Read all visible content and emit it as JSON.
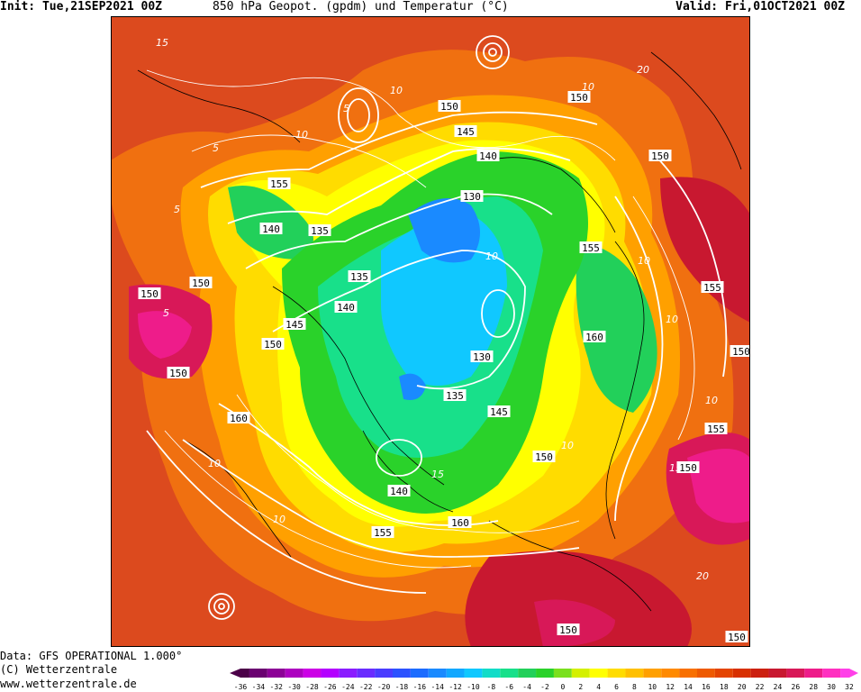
{
  "header": {
    "init": "Init: Tue,21SEP2021 00Z",
    "title": "850 hPa Geopot. (gpdm) und Temperatur (°C)",
    "valid": "Valid: Fri,01OCT2021 00Z"
  },
  "footer": {
    "data_source": "Data: GFS OPERATIONAL 1.000°",
    "copyright": "(C) Wetterzentrale",
    "url": "www.wetterzentrale.de"
  },
  "legend": {
    "ticks": [
      "-36",
      "-34",
      "-32",
      "-30",
      "-28",
      "-26",
      "-24",
      "-22",
      "-20",
      "-18",
      "-16",
      "-14",
      "-12",
      "-10",
      "-8",
      "-6",
      "-4",
      "-2",
      "0",
      "2",
      "4",
      "6",
      "8",
      "10",
      "12",
      "14",
      "16",
      "18",
      "20",
      "22",
      "24",
      "26",
      "28",
      "30",
      "32"
    ],
    "colors": [
      "#4b0048",
      "#6a0070",
      "#8c0096",
      "#ad00c0",
      "#cc00e6",
      "#b400ff",
      "#8a1cff",
      "#6a2cff",
      "#4a3cff",
      "#2c52ff",
      "#1c6cff",
      "#1a8aff",
      "#12a8ff",
      "#10c8ff",
      "#12dcc8",
      "#18e08a",
      "#22d05a",
      "#2ad22a",
      "#7ae01e",
      "#d4f000",
      "#ffff00",
      "#ffdc00",
      "#ffc000",
      "#ffa000",
      "#ff8a00",
      "#f87000",
      "#ee5a00",
      "#e44400",
      "#d83000",
      "#cc2010",
      "#c81830",
      "#d81858",
      "#ee1c8a",
      "#ff30c0",
      "#ff40e8"
    ]
  },
  "contour_labels": {
    "geopotential": [
      "150",
      "145",
      "140",
      "130",
      "155",
      "140",
      "135",
      "150",
      "150",
      "135",
      "140",
      "145",
      "150",
      "150",
      "160",
      "130",
      "135",
      "145",
      "150",
      "140",
      "160",
      "155",
      "155",
      "150",
      "155",
      "155",
      "160",
      "150",
      "150",
      "150",
      "155",
      "150",
      "150"
    ],
    "temperature": [
      "10",
      "10",
      "5",
      "15",
      "5",
      "10",
      "10",
      "15",
      "10",
      "10",
      "5",
      "10",
      "10",
      "10",
      "15",
      "10",
      "20",
      "20",
      "5"
    ]
  },
  "colors": {
    "map_background": "#dc4a1e",
    "isohypse": "#ffffff",
    "isotherm": "#ffffff",
    "coastline": "#000000"
  }
}
